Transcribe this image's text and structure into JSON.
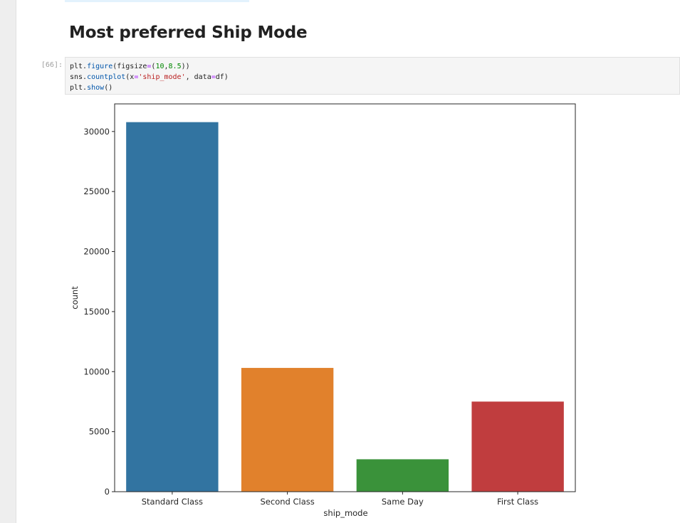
{
  "notebook": {
    "heading": "Most preferred Ship Mode",
    "cell": {
      "prompt": "[66]:",
      "code": [
        [
          {
            "t": "plt."
          },
          {
            "t": "figure",
            "c": "fn"
          },
          {
            "t": "(figsize"
          },
          {
            "t": "=",
            "c": "op"
          },
          {
            "t": "("
          },
          {
            "t": "10",
            "c": "num"
          },
          {
            "t": ","
          },
          {
            "t": "8.5",
            "c": "num"
          },
          {
            "t": "))"
          }
        ],
        [
          {
            "t": "sns."
          },
          {
            "t": "countplot",
            "c": "fn"
          },
          {
            "t": "(x"
          },
          {
            "t": "=",
            "c": "op"
          },
          {
            "t": "'ship_mode'",
            "c": "str"
          },
          {
            "t": ", data"
          },
          {
            "t": "=",
            "c": "op"
          },
          {
            "t": "df)"
          }
        ],
        [
          {
            "t": "plt."
          },
          {
            "t": "show",
            "c": "fn"
          },
          {
            "t": "()"
          }
        ]
      ]
    }
  },
  "colors": {
    "tab_blue": "#3274a1",
    "tab_orange": "#e1812c",
    "tab_green": "#3a923a",
    "tab_red": "#c03d3e",
    "axis": "#262626"
  },
  "chart_data": {
    "type": "bar",
    "title": "",
    "xlabel": "ship_mode",
    "ylabel": "count",
    "categories": [
      "Standard Class",
      "Second Class",
      "Same Day",
      "First Class"
    ],
    "values": [
      30780,
      10309,
      2701,
      7505
    ],
    "bar_colors": [
      "#3274a1",
      "#e1812c",
      "#3a923a",
      "#c03d3e"
    ],
    "ylim": [
      0,
      32300
    ],
    "yticks": [
      0,
      5000,
      10000,
      15000,
      20000,
      25000,
      30000
    ],
    "grid": false,
    "legend": "none"
  }
}
